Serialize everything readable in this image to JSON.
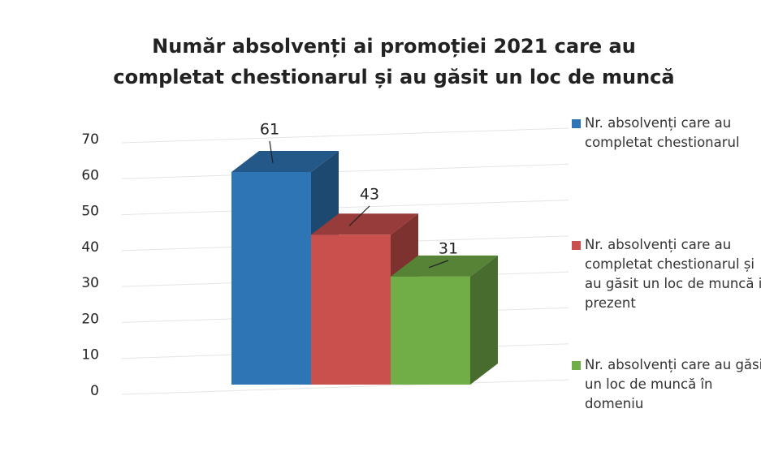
{
  "chart_data": {
    "type": "bar3d",
    "title": "Număr absolvenți ai promoției 2021 care au completat chestionarul și au găsit un loc de muncă",
    "series": [
      {
        "name": "Nr. absolvenți care au completat chestionarul",
        "color": "#2e75b6",
        "values": [
          61
        ]
      },
      {
        "name": "Nr. absolvenți care au completat chestionarul și au găsit un loc de muncă in prezent",
        "color": "#c9504d",
        "values": [
          43
        ]
      },
      {
        "name": "Nr. absolvenți care au găsit un loc de muncă în domeniu",
        "color": "#72ae48",
        "values": [
          31
        ]
      }
    ],
    "ylim": [
      0,
      70
    ],
    "yticks": [
      0,
      10,
      20,
      30,
      40,
      50,
      60,
      70
    ],
    "grid": true,
    "legend": "right"
  }
}
